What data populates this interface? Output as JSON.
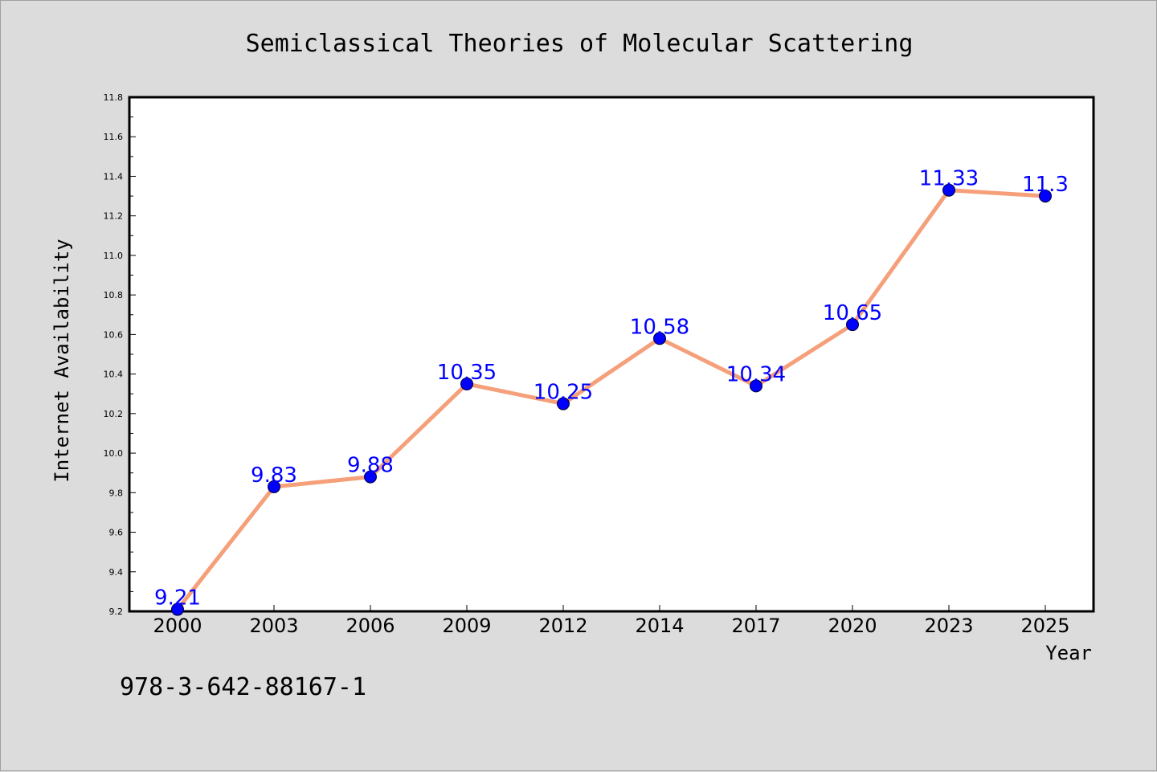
{
  "chart_data": {
    "type": "line",
    "title": "Semiclassical Theories of Molecular Scattering",
    "xlabel": "Year",
    "ylabel": "Internet Availability",
    "categories": [
      "2000",
      "2003",
      "2006",
      "2009",
      "2012",
      "2014",
      "2017",
      "2020",
      "2023",
      "2025"
    ],
    "series": [
      {
        "values": [
          9.21,
          9.83,
          9.88,
          10.35,
          10.25,
          10.58,
          10.34,
          10.65,
          11.33,
          11.3
        ],
        "data_labels": [
          "9.21",
          "9.83",
          "9.88",
          "10.35",
          "10.25",
          "10.58",
          "10.34",
          "10.65",
          "11.33",
          "11.3"
        ],
        "line_color": "#f5a07a",
        "marker_color": "#0000ff"
      }
    ],
    "ylim": [
      9.2,
      11.8
    ],
    "yticks": [
      "9.2",
      "9.4",
      "9.6",
      "9.8",
      "10.0",
      "10.2",
      "10.4",
      "10.6",
      "10.8",
      "11.0",
      "11.2",
      "11.4",
      "11.6",
      "11.8"
    ],
    "grid": false,
    "legend": "none"
  },
  "footer": {
    "isbn": "978-3-642-88167-1"
  },
  "colors": {
    "background": "#dcdcdc",
    "plot_background": "#ffffff",
    "label_color": "#0000ff"
  }
}
